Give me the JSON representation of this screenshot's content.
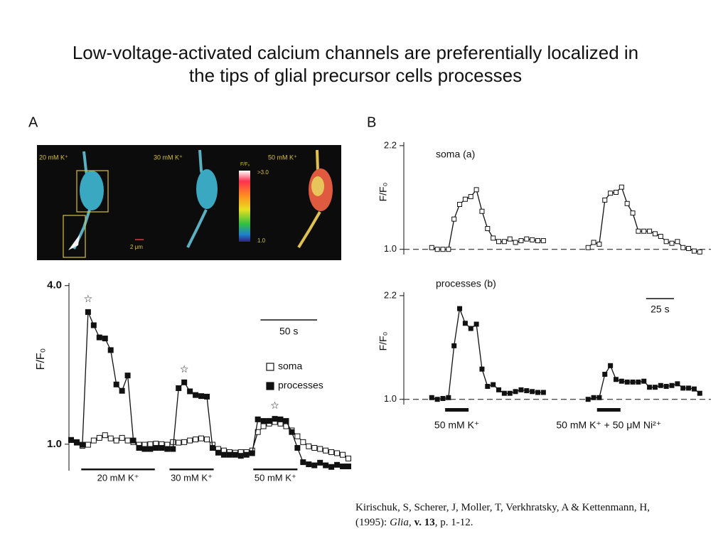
{
  "title": "Low-voltage-activated calcium channels are preferentially localized in the tips of glial precursor cells processes",
  "panel_labels": [
    "A",
    "B"
  ],
  "panel_a_image": {
    "conditions": [
      "20 mM K⁺",
      "30 mM K⁺",
      "50 mM K⁺"
    ],
    "colorbar_title": "F/F₀",
    "colorbar_top": ">3.0",
    "colorbar_bottom": "1.0",
    "scale": "2 μm"
  },
  "chart_data": [
    {
      "type": "line",
      "y_label": "F/F₀",
      "x": [
        0,
        5,
        10,
        15,
        20,
        25,
        30,
        35,
        40,
        45,
        50,
        55,
        60,
        65,
        70,
        75,
        80,
        85,
        90,
        95,
        100,
        105,
        110,
        115,
        120,
        125,
        130,
        135,
        140,
        145,
        150,
        155,
        160,
        165,
        170,
        175,
        180,
        185,
        190,
        195,
        200,
        205,
        210,
        215,
        220,
        225,
        230,
        235,
        240,
        245
      ],
      "xlim": [
        0,
        245
      ],
      "ylim": [
        0.5,
        4.05
      ],
      "yticks": [
        {
          "value": 1,
          "label": "1.0"
        },
        {
          "value": 4,
          "label": "4.0"
        }
      ],
      "series": [
        {
          "name": "soma",
          "marker": "open",
          "color": "#111111",
          "values": [
            1.08,
            1.04,
            0.97,
            0.99,
            1.07,
            1.12,
            1.17,
            1.11,
            1.07,
            1.12,
            1.07,
            1.04,
            0.99,
            0.99,
            1.0,
            1.01,
            1.0,
            0.99,
            1.04,
            1.03,
            1.04,
            1.07,
            1.09,
            1.11,
            1.09,
            0.99,
            0.91,
            0.88,
            0.85,
            0.84,
            0.85,
            0.85,
            0.88,
            1.23,
            1.34,
            1.39,
            1.42,
            1.39,
            1.34,
            1.26,
            1.15,
            1.04,
            0.96,
            0.93,
            0.91,
            0.88,
            0.85,
            0.83,
            0.8,
            0.73
          ]
        },
        {
          "name": "processes",
          "marker": "filled",
          "color": "#111111",
          "values": [
            1.08,
            1.03,
            0.99,
            3.5,
            3.25,
            3.02,
            3.0,
            2.78,
            2.13,
            2.01,
            2.3,
            1.07,
            0.93,
            0.91,
            0.91,
            0.93,
            0.93,
            0.91,
            0.91,
            2.06,
            2.17,
            2.0,
            1.93,
            1.91,
            1.9,
            0.93,
            0.84,
            0.8,
            0.8,
            0.8,
            0.78,
            0.8,
            0.83,
            1.47,
            1.44,
            1.44,
            1.48,
            1.47,
            1.44,
            1.23,
            0.93,
            0.66,
            0.62,
            0.6,
            0.65,
            0.6,
            0.57,
            0.61,
            0.58,
            0.58
          ]
        }
      ],
      "annotations": [
        "☆",
        "☆",
        "☆"
      ],
      "stimuli": [
        {
          "label": "20 mM K⁺",
          "start": 9,
          "end": 74
        },
        {
          "label": "30 mM K⁺",
          "start": 87,
          "end": 126
        },
        {
          "label": "50 mM K⁺",
          "start": 161,
          "end": 200
        }
      ],
      "scale_bar": {
        "label": "50 s",
        "value": 50
      },
      "legend": "right"
    },
    {
      "type": "line",
      "label": "soma (a)",
      "y_label": "F/F₀",
      "x": [
        0,
        5,
        10,
        15,
        20,
        25,
        30,
        35,
        40,
        45,
        50,
        55,
        60,
        65,
        70,
        75,
        80,
        85,
        90,
        95,
        100,
        120,
        140,
        145,
        150,
        155,
        160,
        165,
        170,
        175,
        180,
        185,
        190,
        195,
        200,
        205,
        210,
        215,
        220,
        225,
        230,
        235,
        240
      ],
      "xlim": [
        -25,
        250
      ],
      "ylim": [
        0.94,
        2.24
      ],
      "yticks": [
        {
          "value": 1,
          "label": "1.0"
        },
        2.2
      ],
      "baseline": 1,
      "series": [
        {
          "name": "soma",
          "marker": "open",
          "color": "#111111",
          "values": [
            1.02,
            1.0,
            1.0,
            1.0,
            1.35,
            1.52,
            1.58,
            1.61,
            1.69,
            1.44,
            1.24,
            1.13,
            1.09,
            1.09,
            1.12,
            1.08,
            1.1,
            1.12,
            1.11,
            1.1,
            1.1,
            null,
            1.02,
            1.08,
            1.06,
            1.57,
            1.65,
            1.66,
            1.72,
            1.53,
            1.42,
            1.21,
            1.21,
            1.21,
            1.18,
            1.15,
            1.09,
            1.07,
            1.09,
            1.02,
            1.01,
            0.98,
            0.97
          ]
        }
      ]
    },
    {
      "type": "line",
      "label": "processes (b)",
      "y_label": "F/F₀",
      "x": [
        0,
        5,
        10,
        15,
        20,
        25,
        30,
        35,
        40,
        45,
        50,
        55,
        60,
        65,
        70,
        75,
        80,
        85,
        90,
        95,
        100,
        120,
        140,
        145,
        150,
        155,
        160,
        165,
        170,
        175,
        180,
        185,
        190,
        195,
        200,
        205,
        210,
        215,
        220,
        225,
        230,
        235,
        240
      ],
      "xlim": [
        -25,
        250
      ],
      "ylim": [
        0.94,
        2.24
      ],
      "yticks": [
        {
          "value": 1,
          "label": "1.0"
        },
        2.2
      ],
      "baseline": 1,
      "series": [
        {
          "name": "processes",
          "marker": "filled",
          "color": "#111111",
          "values": [
            1.02,
            1.0,
            1.01,
            1.02,
            1.62,
            2.05,
            1.88,
            1.82,
            1.87,
            1.35,
            1.15,
            1.17,
            1.11,
            1.07,
            1.07,
            1.09,
            1.11,
            1.1,
            1.09,
            1.08,
            1.08,
            null,
            1.0,
            1.02,
            1.02,
            1.29,
            1.39,
            1.23,
            1.21,
            1.2,
            1.2,
            1.2,
            1.21,
            1.14,
            1.14,
            1.16,
            1.15,
            1.16,
            1.18,
            1.13,
            1.13,
            1.12,
            1.07
          ]
        }
      ],
      "stimuli": [
        {
          "label": "50 mM K⁺",
          "start": 12,
          "end": 33
        },
        {
          "label": "50 mM K⁺ + 50 μM Ni²⁺",
          "start": 148,
          "end": 169
        }
      ],
      "scale_bar": {
        "label": "25 s",
        "value": 25
      }
    }
  ],
  "citation": {
    "authors": "Kirischuk, S, Scherer, J, Moller, T, Verkhratsky, A & Kettenmann, H, (1995):",
    "journal": "Glia,",
    "volume": "v. 13",
    "pages": ", p. 1-12."
  }
}
